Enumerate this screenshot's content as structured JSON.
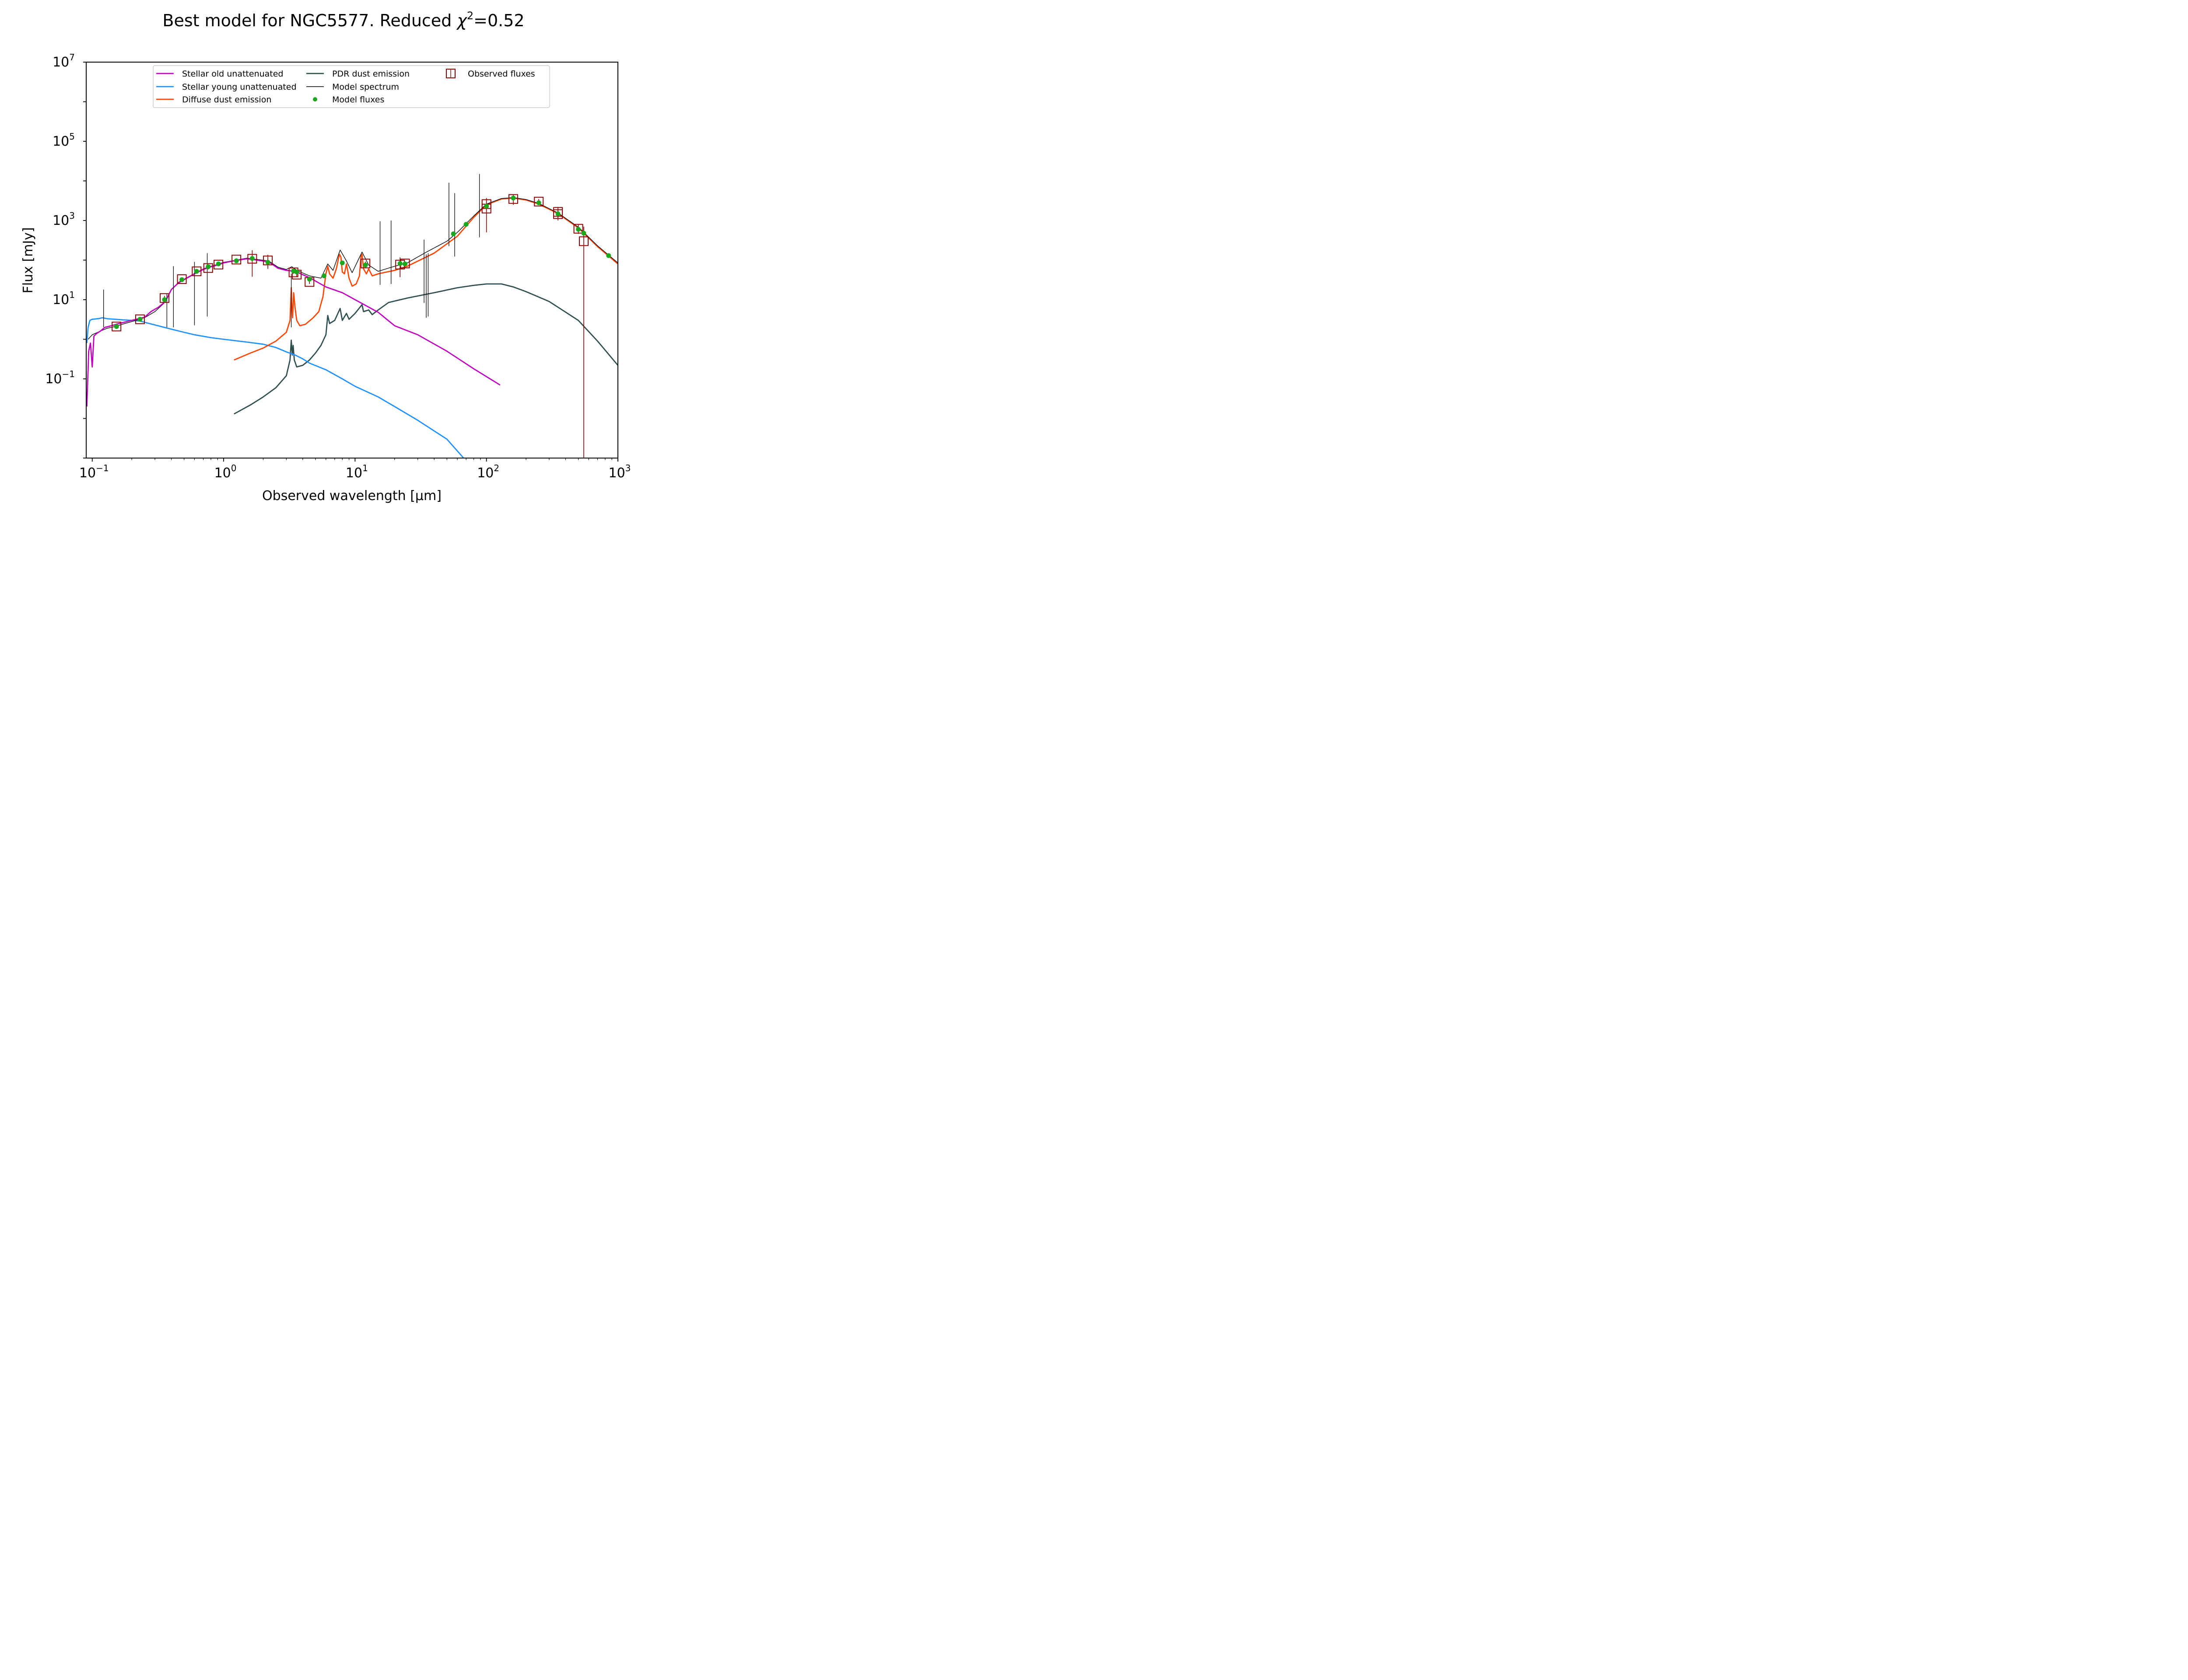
{
  "chart_data": {
    "type": "line",
    "title": "Best model for NGC5577. Reduced χ²=0.52",
    "title_parts": {
      "prefix": "Best model for NGC5577. Reduced ",
      "chi": "χ",
      "sup": "2",
      "suffix": "=0.52"
    },
    "xlabel": "Observed wavelength [μm]",
    "ylabel": "Flux [mJy]",
    "xscale": "log",
    "yscale": "log",
    "xlim": [
      0.09,
      1000
    ],
    "ylim": [
      0.001,
      10000000
    ],
    "x_ticks": [
      {
        "value": 0.1,
        "base": "10",
        "exp": "−1"
      },
      {
        "value": 1,
        "base": "10",
        "exp": "0"
      },
      {
        "value": 10,
        "base": "10",
        "exp": "1"
      },
      {
        "value": 100,
        "base": "10",
        "exp": "2"
      },
      {
        "value": 1000,
        "base": "10",
        "exp": "3"
      }
    ],
    "y_ticks": [
      {
        "value": 0.1,
        "base": "10",
        "exp": "−1"
      },
      {
        "value": 10,
        "base": "10",
        "exp": "1"
      },
      {
        "value": 1000,
        "base": "10",
        "exp": "3"
      },
      {
        "value": 100000,
        "base": "10",
        "exp": "5"
      },
      {
        "value": 10000000,
        "base": "10",
        "exp": "7"
      }
    ],
    "grid": false,
    "legend_position": "top-center",
    "colors": {
      "stellar_old": "#bf00bf",
      "stellar_young": "#1e90ff",
      "diffuse_dust": "#ff4500",
      "pdr_dust": "#2f4f4f",
      "model_spectrum": "#000000",
      "model_fluxes": "#1ca81c",
      "observed_fluxes": "#8b0000"
    },
    "series": [
      {
        "name": "Stellar old unattenuated",
        "key": "stellar_old",
        "points": [
          [
            0.091,
            0.02
          ],
          [
            0.094,
            0.5
          ],
          [
            0.097,
            0.8
          ],
          [
            0.1,
            0.2
          ],
          [
            0.103,
            1.2
          ],
          [
            0.108,
            1.4
          ],
          [
            0.115,
            1.6
          ],
          [
            0.125,
            2.0
          ],
          [
            0.14,
            2.2
          ],
          [
            0.16,
            2.5
          ],
          [
            0.2,
            3.0
          ],
          [
            0.25,
            3.6
          ],
          [
            0.28,
            5.0
          ],
          [
            0.32,
            6.5
          ],
          [
            0.36,
            9.0
          ],
          [
            0.4,
            18
          ],
          [
            0.45,
            26
          ],
          [
            0.5,
            32
          ],
          [
            0.6,
            45
          ],
          [
            0.7,
            58
          ],
          [
            0.8,
            68
          ],
          [
            0.9,
            75
          ],
          [
            1.0,
            85
          ],
          [
            1.2,
            96
          ],
          [
            1.5,
            108
          ],
          [
            1.8,
            100
          ],
          [
            2.2,
            90
          ],
          [
            2.6,
            62
          ],
          [
            3.0,
            55
          ],
          [
            3.5,
            52
          ],
          [
            4.5,
            36
          ],
          [
            6,
            21
          ],
          [
            8,
            15
          ],
          [
            10,
            10
          ],
          [
            15,
            4.8
          ],
          [
            20,
            2.2
          ],
          [
            30,
            1.3
          ],
          [
            50,
            0.5
          ],
          [
            80,
            0.18
          ],
          [
            127,
            0.07
          ]
        ]
      },
      {
        "name": "Stellar young unattenuated",
        "key": "stellar_young",
        "points": [
          [
            0.091,
            0.8
          ],
          [
            0.093,
            2.0
          ],
          [
            0.096,
            3.0
          ],
          [
            0.1,
            3.2
          ],
          [
            0.11,
            3.3
          ],
          [
            0.12,
            3.5
          ],
          [
            0.13,
            3.3
          ],
          [
            0.15,
            3.2
          ],
          [
            0.17,
            3.1
          ],
          [
            0.2,
            3.0
          ],
          [
            0.23,
            2.9
          ],
          [
            0.26,
            2.6
          ],
          [
            0.3,
            2.3
          ],
          [
            0.4,
            1.8
          ],
          [
            0.5,
            1.5
          ],
          [
            0.6,
            1.3
          ],
          [
            0.8,
            1.1
          ],
          [
            1.0,
            1.0
          ],
          [
            1.5,
            0.85
          ],
          [
            2.0,
            0.75
          ],
          [
            2.5,
            0.62
          ],
          [
            3.0,
            0.48
          ],
          [
            3.5,
            0.4
          ],
          [
            4.0,
            0.32
          ],
          [
            4.5,
            0.25
          ],
          [
            6,
            0.17
          ],
          [
            8,
            0.1
          ],
          [
            10,
            0.065
          ],
          [
            15,
            0.035
          ],
          [
            20,
            0.02
          ],
          [
            30,
            0.009
          ],
          [
            50,
            0.003
          ],
          [
            67,
            0.001
          ]
        ]
      },
      {
        "name": "Diffuse dust emission",
        "key": "diffuse_dust",
        "points": [
          [
            1.2,
            0.3
          ],
          [
            1.6,
            0.45
          ],
          [
            2.0,
            0.6
          ],
          [
            2.5,
            0.9
          ],
          [
            3.0,
            1.5
          ],
          [
            3.2,
            3.0
          ],
          [
            3.27,
            20
          ],
          [
            3.3,
            8
          ],
          [
            3.35,
            3.5
          ],
          [
            3.41,
            15
          ],
          [
            3.45,
            10
          ],
          [
            3.5,
            6
          ],
          [
            3.6,
            3
          ],
          [
            3.8,
            2.2
          ],
          [
            4.2,
            2.4
          ],
          [
            4.8,
            3.5
          ],
          [
            5.3,
            5
          ],
          [
            5.7,
            12
          ],
          [
            6.0,
            45
          ],
          [
            6.2,
            70
          ],
          [
            6.4,
            45
          ],
          [
            6.8,
            35
          ],
          [
            7.2,
            60
          ],
          [
            7.6,
            140
          ],
          [
            7.8,
            120
          ],
          [
            8.0,
            50
          ],
          [
            8.3,
            45
          ],
          [
            8.6,
            80
          ],
          [
            9.0,
            35
          ],
          [
            9.5,
            22
          ],
          [
            10.2,
            25
          ],
          [
            10.8,
            40
          ],
          [
            11.1,
            130
          ],
          [
            11.3,
            140
          ],
          [
            11.6,
            60
          ],
          [
            12.2,
            45
          ],
          [
            12.7,
            60
          ],
          [
            13.5,
            40
          ],
          [
            15,
            45
          ],
          [
            20,
            55
          ],
          [
            25,
            70
          ],
          [
            40,
            150
          ],
          [
            60,
            400
          ],
          [
            80,
            1200
          ],
          [
            100,
            2500
          ],
          [
            130,
            3500
          ],
          [
            160,
            3700
          ],
          [
            200,
            3300
          ],
          [
            250,
            2600
          ],
          [
            350,
            1500
          ],
          [
            500,
            650
          ],
          [
            700,
            220
          ],
          [
            1000,
            80
          ]
        ]
      },
      {
        "name": "PDR dust emission",
        "key": "pdr_dust",
        "points": [
          [
            1.2,
            0.013
          ],
          [
            1.6,
            0.022
          ],
          [
            2.0,
            0.035
          ],
          [
            2.5,
            0.06
          ],
          [
            3.0,
            0.12
          ],
          [
            3.2,
            0.3
          ],
          [
            3.27,
            0.95
          ],
          [
            3.33,
            0.4
          ],
          [
            3.38,
            0.7
          ],
          [
            3.45,
            0.3
          ],
          [
            3.6,
            0.2
          ],
          [
            4.0,
            0.22
          ],
          [
            4.5,
            0.3
          ],
          [
            5.0,
            0.45
          ],
          [
            5.5,
            0.7
          ],
          [
            6.0,
            1.3
          ],
          [
            6.2,
            4.0
          ],
          [
            6.4,
            2.5
          ],
          [
            7.0,
            3.0
          ],
          [
            7.7,
            6.0
          ],
          [
            8.0,
            3.0
          ],
          [
            8.6,
            4.5
          ],
          [
            9.0,
            3.2
          ],
          [
            10,
            4.5
          ],
          [
            11.3,
            7.5
          ],
          [
            11.6,
            5.0
          ],
          [
            12.7,
            5.5
          ],
          [
            13.5,
            4.2
          ],
          [
            15,
            5.5
          ],
          [
            18,
            8.5
          ],
          [
            25,
            11
          ],
          [
            40,
            15
          ],
          [
            60,
            20
          ],
          [
            80,
            23
          ],
          [
            100,
            25
          ],
          [
            130,
            25
          ],
          [
            160,
            21
          ],
          [
            200,
            16
          ],
          [
            300,
            9
          ],
          [
            500,
            3
          ],
          [
            700,
            0.9
          ],
          [
            1000,
            0.22
          ]
        ]
      },
      {
        "name": "Model spectrum",
        "key": "model_spectrum",
        "points": [
          [
            0.093,
            1.0
          ],
          [
            0.1,
            1.3
          ],
          [
            0.11,
            1.5
          ],
          [
            0.12,
            1.7
          ],
          [
            0.13,
            1.9
          ],
          [
            0.15,
            2.1
          ],
          [
            0.17,
            2.4
          ],
          [
            0.2,
            2.8
          ],
          [
            0.25,
            3.5
          ],
          [
            0.3,
            5
          ],
          [
            0.35,
            8
          ],
          [
            0.4,
            18
          ],
          [
            0.45,
            27
          ],
          [
            0.5,
            33
          ],
          [
            0.6,
            46
          ],
          [
            0.7,
            60
          ],
          [
            0.8,
            70
          ],
          [
            0.9,
            78
          ],
          [
            1.0,
            88
          ],
          [
            1.2,
            98
          ],
          [
            1.5,
            112
          ],
          [
            1.8,
            104
          ],
          [
            2.2,
            95
          ],
          [
            2.6,
            66
          ],
          [
            3.0,
            58
          ],
          [
            3.3,
            68
          ],
          [
            3.6,
            55
          ],
          [
            4.5,
            40
          ],
          [
            5.5,
            35
          ],
          [
            6.2,
            80
          ],
          [
            6.8,
            55
          ],
          [
            7.7,
            180
          ],
          [
            8.6,
            95
          ],
          [
            9.5,
            48
          ],
          [
            11.3,
            160
          ],
          [
            12.7,
            75
          ],
          [
            15,
            52
          ],
          [
            20,
            70
          ],
          [
            25,
            85
          ],
          [
            35,
            160
          ],
          [
            50,
            300
          ],
          [
            60,
            500
          ],
          [
            80,
            1300
          ],
          [
            100,
            2600
          ],
          [
            130,
            3600
          ],
          [
            160,
            3800
          ],
          [
            200,
            3400
          ],
          [
            250,
            2700
          ],
          [
            350,
            1550
          ],
          [
            500,
            680
          ],
          [
            700,
            230
          ],
          [
            1000,
            85
          ]
        ]
      }
    ],
    "model_spectrum_lines": [
      [
        0.122,
        18
      ],
      [
        0.37,
        14
      ],
      [
        0.415,
        70
      ],
      [
        0.6,
        90
      ],
      [
        0.75,
        150
      ],
      [
        3.27,
        45
      ],
      [
        15.5,
        950
      ],
      [
        18.8,
        1000
      ],
      [
        33.5,
        330
      ],
      [
        34.8,
        140
      ],
      [
        36,
        150
      ],
      [
        51.8,
        9000
      ],
      [
        57.3,
        4900
      ],
      [
        88.4,
        15000
      ]
    ],
    "model_fluxes": [
      [
        0.153,
        2.1
      ],
      [
        0.231,
        3.2
      ],
      [
        0.355,
        10
      ],
      [
        0.481,
        32
      ],
      [
        0.623,
        52
      ],
      [
        0.763,
        68
      ],
      [
        0.913,
        80
      ],
      [
        1.25,
        96
      ],
      [
        1.65,
        110
      ],
      [
        2.17,
        88
      ],
      [
        3.4,
        53
      ],
      [
        3.6,
        50
      ],
      [
        4.5,
        33
      ],
      [
        5.8,
        40
      ],
      [
        8.0,
        85
      ],
      [
        12,
        75
      ],
      [
        22,
        82
      ],
      [
        24,
        80
      ],
      [
        56,
        460
      ],
      [
        70,
        800
      ],
      [
        100,
        2300
      ],
      [
        160,
        3700
      ],
      [
        250,
        2800
      ],
      [
        350,
        1480
      ],
      [
        500,
        600
      ],
      [
        550,
        480
      ],
      [
        850,
        130
      ]
    ],
    "observed_fluxes": [
      {
        "x": 0.153,
        "y": 2.1,
        "lo": 1.9,
        "hi": 2.3
      },
      {
        "x": 0.231,
        "y": 3.2,
        "lo": 2.9,
        "hi": 3.5
      },
      {
        "x": 0.355,
        "y": 11,
        "lo": 9.5,
        "hi": 12.5
      },
      {
        "x": 0.481,
        "y": 33,
        "lo": 30,
        "hi": 36
      },
      {
        "x": 0.623,
        "y": 52,
        "lo": 48,
        "hi": 56
      },
      {
        "x": 0.763,
        "y": 63,
        "lo": 58,
        "hi": 68
      },
      {
        "x": 0.913,
        "y": 77,
        "lo": 72,
        "hi": 82
      },
      {
        "x": 1.25,
        "y": 103,
        "lo": 95,
        "hi": 111
      },
      {
        "x": 1.65,
        "y": 108,
        "lo": 38,
        "hi": 178
      },
      {
        "x": 2.17,
        "y": 98,
        "lo": 60,
        "hi": 136
      },
      {
        "x": 3.4,
        "y": 49,
        "lo": 45,
        "hi": 53
      },
      {
        "x": 3.6,
        "y": 43,
        "lo": 39,
        "hi": 47
      },
      {
        "x": 4.5,
        "y": 28,
        "lo": 25,
        "hi": 31
      },
      {
        "x": 12,
        "y": 82,
        "lo": 72,
        "hi": 92
      },
      {
        "x": 22,
        "y": 77,
        "lo": 37,
        "hi": 117
      },
      {
        "x": 24,
        "y": 82,
        "lo": 74,
        "hi": 90
      },
      {
        "x": 100,
        "y": 2600,
        "lo": 1500,
        "hi": 3700
      },
      {
        "x": 100,
        "y": 2000,
        "lo": 500,
        "hi": 3500
      },
      {
        "x": 160,
        "y": 3500,
        "lo": 2500,
        "hi": 4500
      },
      {
        "x": 250,
        "y": 3000,
        "lo": 2500,
        "hi": 3500
      },
      {
        "x": 350,
        "y": 1650,
        "lo": 1100,
        "hi": 2200
      },
      {
        "x": 350,
        "y": 1450,
        "lo": 1000,
        "hi": 1900
      },
      {
        "x": 500,
        "y": 620,
        "lo": 460,
        "hi": 780
      },
      {
        "x": 550,
        "y": 300,
        "lo": 0.001,
        "hi": 700
      }
    ],
    "legend": [
      {
        "label": "Stellar old unattenuated",
        "key": "stellar_old",
        "kind": "line"
      },
      {
        "label": "Stellar young unattenuated",
        "key": "stellar_young",
        "kind": "line"
      },
      {
        "label": "Diffuse dust emission",
        "key": "diffuse_dust",
        "kind": "line"
      },
      {
        "label": "PDR dust emission",
        "key": "pdr_dust",
        "kind": "line"
      },
      {
        "label": "Model spectrum",
        "key": "model_spectrum",
        "kind": "thin-line"
      },
      {
        "label": "Model fluxes",
        "key": "model_fluxes",
        "kind": "dot"
      },
      {
        "label": "Observed fluxes",
        "key": "observed_fluxes",
        "kind": "square"
      }
    ]
  }
}
